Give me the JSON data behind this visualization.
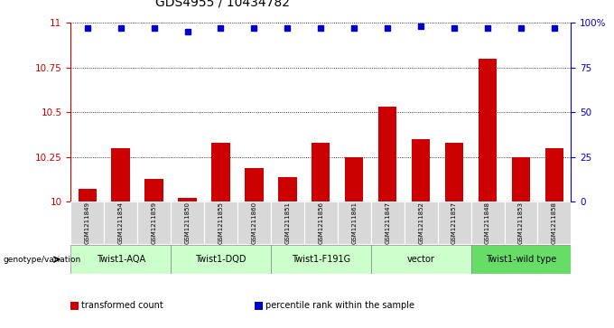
{
  "title": "GDS4955 / 10434782",
  "samples": [
    "GSM1211849",
    "GSM1211854",
    "GSM1211859",
    "GSM1211850",
    "GSM1211855",
    "GSM1211860",
    "GSM1211851",
    "GSM1211856",
    "GSM1211861",
    "GSM1211847",
    "GSM1211852",
    "GSM1211857",
    "GSM1211848",
    "GSM1211853",
    "GSM1211858"
  ],
  "bar_values": [
    10.07,
    10.3,
    10.13,
    10.02,
    10.33,
    10.19,
    10.14,
    10.33,
    10.25,
    10.53,
    10.35,
    10.33,
    10.8,
    10.25,
    10.3
  ],
  "percentile_values": [
    97,
    97,
    97,
    95,
    97,
    97,
    97,
    97,
    97,
    97,
    98,
    97,
    97,
    97,
    97
  ],
  "bar_color": "#cc0000",
  "dot_color": "#0000cc",
  "groups": [
    {
      "label": "Twist1-AQA",
      "start": 0,
      "end": 2,
      "color": "#ccffcc"
    },
    {
      "label": "Twist1-DQD",
      "start": 3,
      "end": 5,
      "color": "#ccffcc"
    },
    {
      "label": "Twist1-F191G",
      "start": 6,
      "end": 8,
      "color": "#ccffcc"
    },
    {
      "label": "vector",
      "start": 9,
      "end": 11,
      "color": "#ccffcc"
    },
    {
      "label": "Twist1-wild type",
      "start": 12,
      "end": 14,
      "color": "#66dd66"
    }
  ],
  "ylim_left": [
    10,
    11
  ],
  "ylim_right": [
    0,
    100
  ],
  "yticks_left": [
    10,
    10.25,
    10.5,
    10.75,
    11
  ],
  "yticks_right": [
    0,
    25,
    50,
    75,
    100
  ],
  "background_color": "#ffffff",
  "legend_items": [
    {
      "label": "transformed count",
      "color": "#cc0000"
    },
    {
      "label": "percentile rank within the sample",
      "color": "#0000cc"
    }
  ]
}
